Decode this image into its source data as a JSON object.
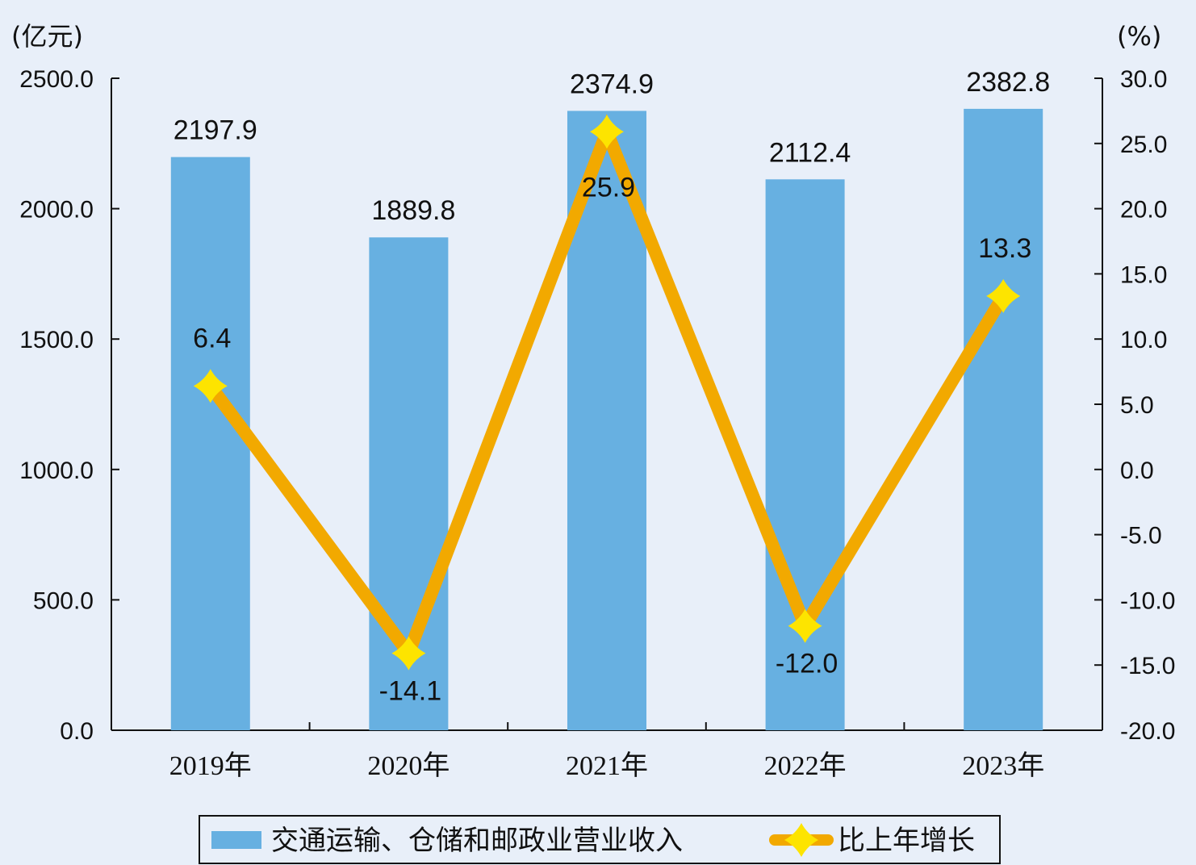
{
  "chart_data": {
    "type": "bar",
    "categories": [
      "2019年",
      "2020年",
      "2021年",
      "2022年",
      "2023年"
    ],
    "series": [
      {
        "name": "交通运输、仓储和邮政业营业收入",
        "type": "bar",
        "axis": "left",
        "values": [
          2197.9,
          1889.8,
          2374.9,
          2112.4,
          2382.8
        ],
        "labels": [
          "2197.9",
          "1889.8",
          "2374.9",
          "2112.4",
          "2382.8"
        ],
        "color": "#67b0e1"
      },
      {
        "name": "比上年增长",
        "type": "line",
        "axis": "right",
        "values": [
          6.4,
          -14.1,
          25.9,
          -12.0,
          13.3
        ],
        "labels": [
          "6.4",
          "-14.1",
          "25.9",
          "-12.0",
          "13.3"
        ],
        "color": "#f2a900",
        "marker_color": "#fde400"
      }
    ],
    "y_left": {
      "unit": "(亿元)",
      "ylim": [
        0,
        2500
      ],
      "ticks": [
        "0.0",
        "500.0",
        "1000.0",
        "1500.0",
        "2000.0",
        "2500.0"
      ]
    },
    "y_right": {
      "unit": "(%)",
      "ylim": [
        -20,
        30
      ],
      "ticks": [
        "-20.0",
        "-15.0",
        "-10.0",
        "-5.0",
        "0.0",
        "5.0",
        "10.0",
        "15.0",
        "20.0",
        "25.0",
        "30.0"
      ]
    },
    "grid": false,
    "legend_position": "bottom-center"
  },
  "colors": {
    "background": "#e8eff9",
    "bar": "#67b0e1",
    "line": "#f2a900",
    "marker": "#fde400"
  }
}
